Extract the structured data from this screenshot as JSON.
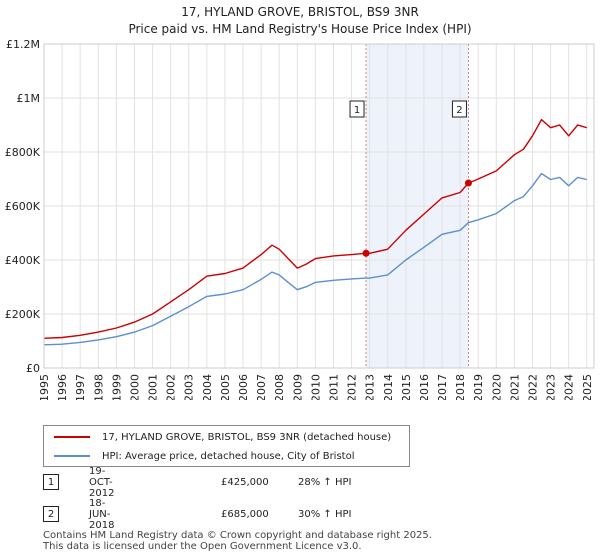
{
  "chart_data": {
    "type": "line",
    "title": "17, HYLAND GROVE, BRISTOL, BS9 3NR",
    "subtitle": "Price paid vs. HM Land Registry's House Price Index (HPI)",
    "xlim": [
      1995,
      2025.4
    ],
    "ylim": [
      0,
      1200000
    ],
    "x_ticks": [
      "1995",
      "1996",
      "1997",
      "1998",
      "1999",
      "2000",
      "2001",
      "2002",
      "2003",
      "2004",
      "2005",
      "2006",
      "2007",
      "2008",
      "2009",
      "2010",
      "2011",
      "2012",
      "2013",
      "2014",
      "2015",
      "2016",
      "2017",
      "2018",
      "2019",
      "2020",
      "2021",
      "2022",
      "2023",
      "2024",
      "2025"
    ],
    "y_ticks": [
      {
        "value": 0,
        "label": "£0"
      },
      {
        "value": 200000,
        "label": "£200K"
      },
      {
        "value": 400000,
        "label": "£400K"
      },
      {
        "value": 600000,
        "label": "£600K"
      },
      {
        "value": 800000,
        "label": "£800K"
      },
      {
        "value": 1000000,
        "label": "£1M"
      },
      {
        "value": 1200000,
        "label": "£1.2M"
      }
    ],
    "grid": true,
    "shaded_period": [
      2012.8,
      2018.46
    ],
    "series": [
      {
        "name": "17, HYLAND GROVE, BRISTOL, BS9 3NR (detached house)",
        "color": "#cc0000",
        "x": [
          1995,
          1996,
          1997,
          1998,
          1999,
          2000,
          2001,
          2002,
          2003,
          2004,
          2005,
          2006,
          2007,
          2007.6,
          2008,
          2008.5,
          2009,
          2009.5,
          2010,
          2011,
          2012,
          2012.8,
          2013,
          2014,
          2015,
          2016,
          2017,
          2018,
          2018.46,
          2019,
          2020,
          2021,
          2021.5,
          2022,
          2022.5,
          2023,
          2023.5,
          2024,
          2024.5,
          2025
        ],
        "y": [
          110000,
          113000,
          121000,
          133000,
          148000,
          170000,
          200000,
          245000,
          290000,
          340000,
          350000,
          370000,
          420000,
          455000,
          440000,
          405000,
          370000,
          385000,
          405000,
          415000,
          420000,
          425000,
          425000,
          440000,
          510000,
          570000,
          630000,
          650000,
          685000,
          700000,
          730000,
          790000,
          810000,
          860000,
          920000,
          890000,
          900000,
          860000,
          900000,
          890000
        ]
      },
      {
        "name": "HPI: Average price, detached house, City of Bristol",
        "color": "#5b8fcf",
        "x": [
          1995,
          1996,
          1997,
          1998,
          1999,
          2000,
          2001,
          2002,
          2003,
          2004,
          2005,
          2006,
          2007,
          2007.6,
          2008,
          2008.5,
          2009,
          2009.5,
          2010,
          2011,
          2012,
          2012.8,
          2013,
          2014,
          2015,
          2016,
          2017,
          2018,
          2018.46,
          2019,
          2020,
          2021,
          2021.5,
          2022,
          2022.5,
          2023,
          2023.5,
          2024,
          2024.5,
          2025
        ],
        "y": [
          86000,
          88000,
          95000,
          104000,
          116000,
          133000,
          157000,
          192000,
          227000,
          265000,
          274000,
          290000,
          328000,
          355000,
          345000,
          317000,
          290000,
          301000,
          317000,
          325000,
          330000,
          333000,
          333000,
          345000,
          400000,
          447000,
          495000,
          510000,
          538000,
          549000,
          572000,
          620000,
          635000,
          675000,
          720000,
          698000,
          706000,
          675000,
          706000,
          698000
        ]
      }
    ],
    "markers": [
      {
        "id": "1",
        "x": 2012.8,
        "y": 425000
      },
      {
        "id": "2",
        "x": 2018.46,
        "y": 685000
      }
    ]
  },
  "legend": {
    "line1": "17, HYLAND GROVE, BRISTOL, BS9 3NR (detached house)",
    "line2": "HPI: Average price, detached house, City of Bristol"
  },
  "annotations": [
    {
      "num": "1",
      "date": "19-OCT-2012",
      "price": "£425,000",
      "hpi": "28% ↑ HPI"
    },
    {
      "num": "2",
      "date": "18-JUN-2018",
      "price": "£685,000",
      "hpi": "30% ↑ HPI"
    }
  ],
  "footer": {
    "line1": "Contains HM Land Registry data © Crown copyright and database right 2025.",
    "line2": "This data is licensed under the Open Government Licence v3.0."
  }
}
